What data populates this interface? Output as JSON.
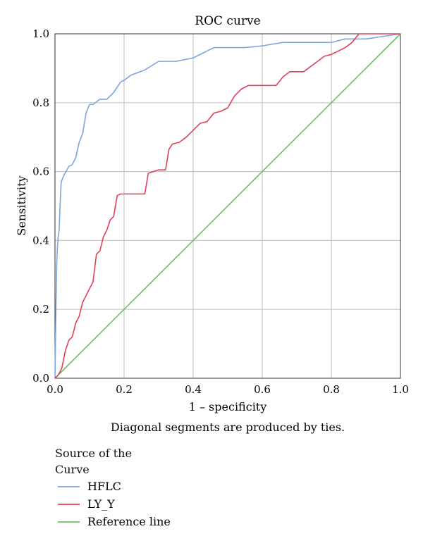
{
  "chart_data": {
    "type": "line",
    "title": "ROC curve",
    "xlabel": "1 – specificity",
    "ylabel": "Sensitivity",
    "note": "Diagonal segments are produced by ties.",
    "xlim": [
      0,
      1
    ],
    "ylim": [
      0,
      1
    ],
    "xticks": [
      "0.0",
      "0.2",
      "0.4",
      "0.6",
      "0.8",
      "1.0"
    ],
    "yticks": [
      "0.0",
      "0.2",
      "0.4",
      "0.6",
      "0.8",
      "1.0"
    ],
    "grid": true,
    "legend": {
      "title": "Source of the Curve",
      "placement": "bottom-left"
    },
    "series": [
      {
        "name": "HFLC",
        "color": "#7ba6dc",
        "x": [
          0.0,
          0.003,
          0.005,
          0.007,
          0.009,
          0.012,
          0.015,
          0.018,
          0.022,
          0.026,
          0.032,
          0.04,
          0.05,
          0.06,
          0.07,
          0.08,
          0.09,
          0.1,
          0.11,
          0.13,
          0.15,
          0.17,
          0.19,
          0.2,
          0.22,
          0.26,
          0.3,
          0.35,
          0.4,
          0.44,
          0.46,
          0.5,
          0.55,
          0.6,
          0.66,
          0.72,
          0.8,
          0.84,
          0.9,
          1.0
        ],
        "y": [
          0.0,
          0.22,
          0.33,
          0.38,
          0.41,
          0.43,
          0.51,
          0.57,
          0.58,
          0.59,
          0.6,
          0.615,
          0.62,
          0.64,
          0.685,
          0.71,
          0.77,
          0.795,
          0.795,
          0.81,
          0.81,
          0.83,
          0.86,
          0.865,
          0.88,
          0.895,
          0.92,
          0.92,
          0.93,
          0.95,
          0.96,
          0.96,
          0.96,
          0.965,
          0.975,
          0.975,
          0.975,
          0.985,
          0.985,
          1.0
        ]
      },
      {
        "name": "LY_Y",
        "color": "#e0405a",
        "x": [
          0.0,
          0.01,
          0.02,
          0.03,
          0.04,
          0.05,
          0.06,
          0.07,
          0.08,
          0.09,
          0.1,
          0.11,
          0.12,
          0.13,
          0.14,
          0.15,
          0.16,
          0.17,
          0.18,
          0.19,
          0.2,
          0.26,
          0.27,
          0.3,
          0.32,
          0.33,
          0.34,
          0.36,
          0.38,
          0.4,
          0.42,
          0.44,
          0.46,
          0.48,
          0.5,
          0.52,
          0.54,
          0.56,
          0.6,
          0.64,
          0.66,
          0.68,
          0.7,
          0.72,
          0.74,
          0.76,
          0.78,
          0.8,
          0.82,
          0.84,
          0.86,
          0.88,
          0.9,
          1.0
        ],
        "y": [
          0.0,
          0.01,
          0.03,
          0.08,
          0.11,
          0.12,
          0.16,
          0.18,
          0.22,
          0.24,
          0.26,
          0.28,
          0.36,
          0.37,
          0.41,
          0.43,
          0.46,
          0.47,
          0.53,
          0.535,
          0.535,
          0.535,
          0.595,
          0.605,
          0.605,
          0.665,
          0.68,
          0.685,
          0.7,
          0.72,
          0.74,
          0.745,
          0.77,
          0.775,
          0.785,
          0.82,
          0.84,
          0.85,
          0.85,
          0.85,
          0.875,
          0.89,
          0.89,
          0.89,
          0.905,
          0.92,
          0.935,
          0.94,
          0.95,
          0.96,
          0.975,
          1.0,
          1.0,
          1.0
        ]
      },
      {
        "name": "Reference line",
        "color": "#6cbf63",
        "x": [
          0,
          1
        ],
        "y": [
          0,
          1
        ]
      }
    ]
  }
}
